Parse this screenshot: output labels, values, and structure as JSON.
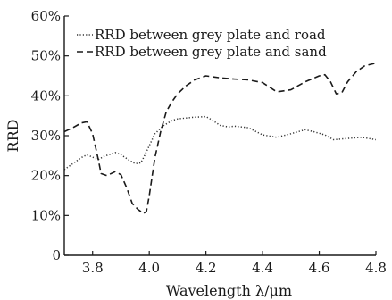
{
  "chart_data": {
    "type": "line",
    "xlabel": "Wavelength λ/μm",
    "ylabel": "RRD",
    "xlim": [
      3.7,
      4.8
    ],
    "ylim": [
      0,
      60
    ],
    "x_ticks": [
      {
        "value": 3.8,
        "label": "3.8"
      },
      {
        "value": 4.0,
        "label": "4.0"
      },
      {
        "value": 4.2,
        "label": "4.2"
      },
      {
        "value": 4.4,
        "label": "4.4"
      },
      {
        "value": 4.6,
        "label": "4.6"
      },
      {
        "value": 4.8,
        "label": "4.8"
      }
    ],
    "y_ticks": [
      {
        "value": 0,
        "label": "0"
      },
      {
        "value": 10,
        "label": "10%"
      },
      {
        "value": 20,
        "label": "20%"
      },
      {
        "value": 30,
        "label": "30%"
      },
      {
        "value": 40,
        "label": "40%"
      },
      {
        "value": 50,
        "label": "50%"
      },
      {
        "value": 60,
        "label": "60%"
      }
    ],
    "legend_position": "top-left",
    "grid": false,
    "series": [
      {
        "name": "RRD between grey plate and road",
        "style": "dotted",
        "color": "#333333",
        "x": [
          3.7,
          3.73,
          3.76,
          3.78,
          3.8,
          3.82,
          3.84,
          3.86,
          3.88,
          3.9,
          3.93,
          3.95,
          3.97,
          3.98,
          4.0,
          4.02,
          4.05,
          4.08,
          4.1,
          4.15,
          4.2,
          4.22,
          4.25,
          4.28,
          4.3,
          4.35,
          4.4,
          4.45,
          4.5,
          4.55,
          4.58,
          4.62,
          4.65,
          4.7,
          4.75,
          4.8
        ],
        "y": [
          21.5,
          23.0,
          24.5,
          25.2,
          24.6,
          24.0,
          24.8,
          25.3,
          25.8,
          25.2,
          23.8,
          23.0,
          23.2,
          24.5,
          27.5,
          30.5,
          32.5,
          33.8,
          34.2,
          34.6,
          34.8,
          34.0,
          32.6,
          32.2,
          32.4,
          32.0,
          30.2,
          29.6,
          30.5,
          31.5,
          31.0,
          30.2,
          29.0,
          29.3,
          29.6,
          29.0
        ]
      },
      {
        "name": "RRD between grey plate and sand",
        "style": "dashed",
        "color": "#1a1a1a",
        "x": [
          3.7,
          3.73,
          3.76,
          3.78,
          3.8,
          3.82,
          3.83,
          3.85,
          3.88,
          3.9,
          3.92,
          3.94,
          3.96,
          3.98,
          3.99,
          4.0,
          4.02,
          4.04,
          4.06,
          4.08,
          4.1,
          4.13,
          4.16,
          4.2,
          4.25,
          4.3,
          4.35,
          4.4,
          4.45,
          4.5,
          4.55,
          4.6,
          4.62,
          4.64,
          4.66,
          4.68,
          4.7,
          4.73,
          4.76,
          4.8
        ],
        "y": [
          31.0,
          32.0,
          33.2,
          33.5,
          30.5,
          24.0,
          20.5,
          20.0,
          21.0,
          20.2,
          17.0,
          13.0,
          11.5,
          10.5,
          11.0,
          15.0,
          24.5,
          31.0,
          36.0,
          38.5,
          40.5,
          42.5,
          44.0,
          45.0,
          44.5,
          44.2,
          44.0,
          43.3,
          41.0,
          41.5,
          43.5,
          45.0,
          45.3,
          43.5,
          40.5,
          40.8,
          43.5,
          46.0,
          47.5,
          48.2
        ]
      }
    ]
  }
}
